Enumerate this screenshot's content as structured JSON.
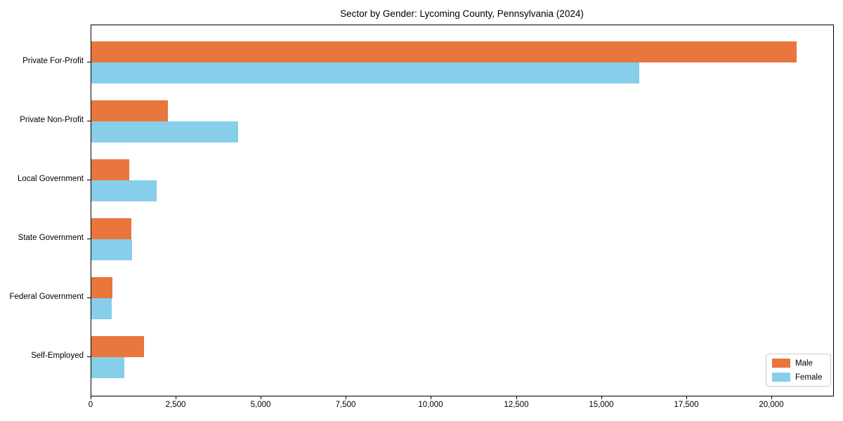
{
  "title": "Sector by Gender: Lycoming County, Pennsylvania (2024)",
  "chart_data": {
    "type": "bar",
    "orientation": "horizontal",
    "title": "Sector by Gender: Lycoming County, Pennsylvania (2024)",
    "xlabel": "",
    "ylabel": "",
    "categories": [
      "Private For-Profit",
      "Private Non-Profit",
      "Local Government",
      "State Government",
      "Federal Government",
      "Self-Employed"
    ],
    "series": [
      {
        "name": "Male",
        "color": "#e8763d",
        "values": [
          20730,
          2240,
          1110,
          1170,
          615,
          1540
        ]
      },
      {
        "name": "Female",
        "color": "#87ceeb",
        "values": [
          16100,
          4320,
          1930,
          1200,
          600,
          970
        ]
      }
    ],
    "xlim": [
      0,
      21800
    ],
    "x_ticks": [
      0,
      2500,
      5000,
      7500,
      10000,
      12500,
      15000,
      17500,
      20000
    ],
    "x_tick_labels": [
      "0",
      "2,500",
      "5,000",
      "7,500",
      "10,000",
      "12,500",
      "15,000",
      "17,500",
      "20,000"
    ],
    "grid": false,
    "legend_position": "lower right"
  },
  "legend": {
    "items": [
      {
        "label": "Male",
        "color": "#e8763d"
      },
      {
        "label": "Female",
        "color": "#87ceeb"
      }
    ]
  }
}
